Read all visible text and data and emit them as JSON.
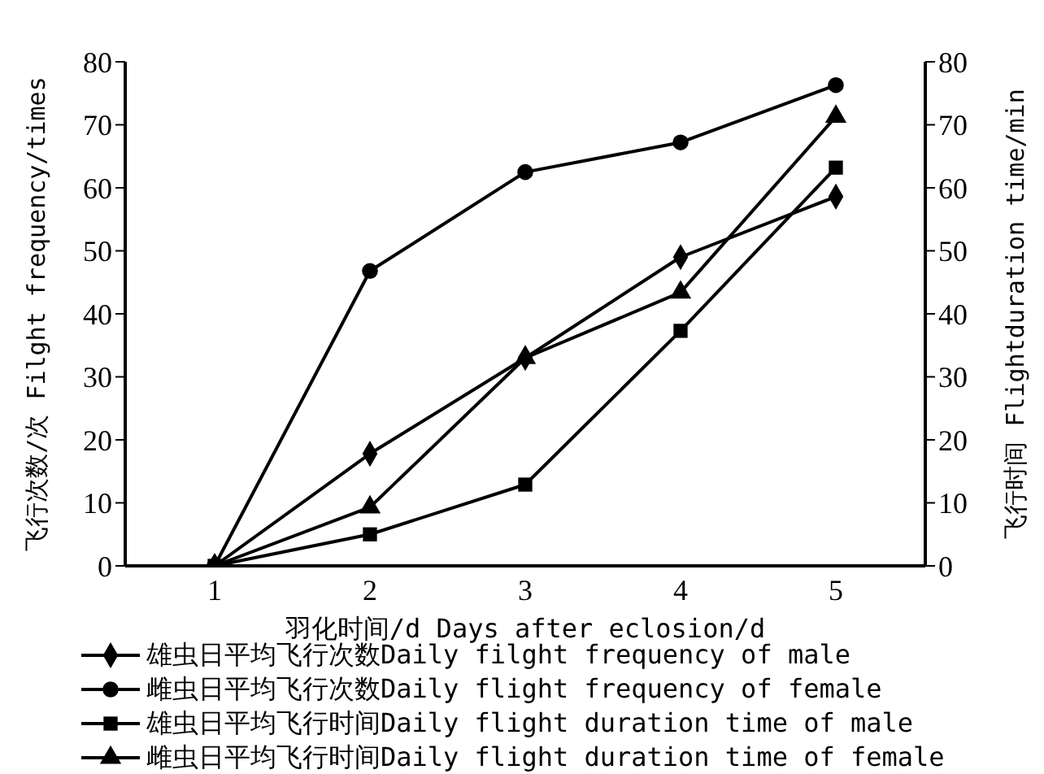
{
  "chart_data": {
    "type": "line",
    "xlabel": "羽化时间/d Days after eclosion/d",
    "ylabel": "飞行次数/次 Filght frequency/times",
    "y2label": "飞行时间 Flightduration time/min",
    "categories": [
      "1",
      "2",
      "3",
      "4",
      "5"
    ],
    "series": [
      {
        "name": "雄虫日平均飞行次数Daily filght frequency of male",
        "color": "#000000",
        "marker": "diamond",
        "values": [
          0,
          17.8,
          33,
          49,
          58.6
        ]
      },
      {
        "name": "雌虫日平均飞行次数Daily flight frequency of female",
        "color": "#000000",
        "marker": "circle",
        "values": [
          0,
          46.8,
          62.5,
          67.2,
          76.3
        ]
      },
      {
        "name": "雄虫日平均飞行时间Daily flight duration time of male",
        "color": "#000000",
        "marker": "square",
        "values": [
          0,
          5,
          12.9,
          37.3,
          63.2
        ]
      },
      {
        "name": "雌虫日平均飞行时间Daily flight duration time of female",
        "color": "#000000",
        "marker": "triangle",
        "values": [
          0,
          9.3,
          33,
          43.4,
          71.3
        ]
      }
    ],
    "ylim": [
      0,
      80
    ],
    "yticks": [
      0,
      10,
      20,
      30,
      40,
      50,
      60,
      70,
      80
    ],
    "y2lim": [
      0,
      80
    ],
    "y2ticks": [
      0,
      10,
      20,
      30,
      40,
      50,
      60,
      70,
      80
    ],
    "legend": "bottom",
    "line_style": "solid"
  }
}
